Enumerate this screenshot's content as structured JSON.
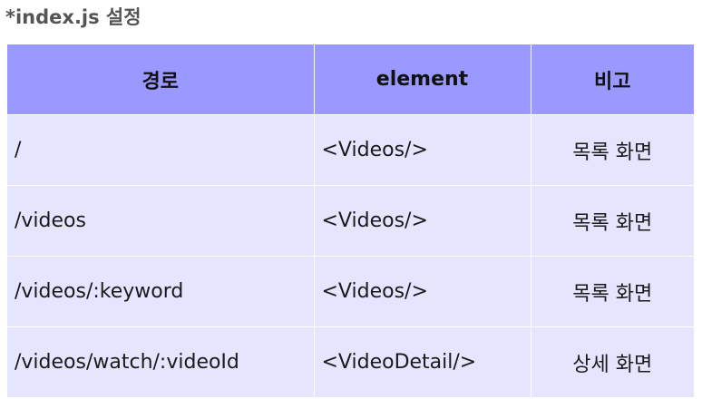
{
  "title": "*index.js 설정",
  "table": {
    "headers": [
      "경로",
      "element",
      "비고"
    ],
    "rows": [
      {
        "path": "/",
        "element": "<Videos/>",
        "note": "목록 화면"
      },
      {
        "path": "/videos",
        "element": "<Videos/>",
        "note": "목록 화면"
      },
      {
        "path": "/videos/:keyword",
        "element": "<Videos/>",
        "note": "목록 화면"
      },
      {
        "path": "/videos/watch/:videoId",
        "element": "<VideoDetail/>",
        "note": "상세 화면"
      }
    ]
  },
  "colors": {
    "header_bg": "#9999ff",
    "row_bg": "#e5e5ff",
    "title_color": "#555555"
  }
}
